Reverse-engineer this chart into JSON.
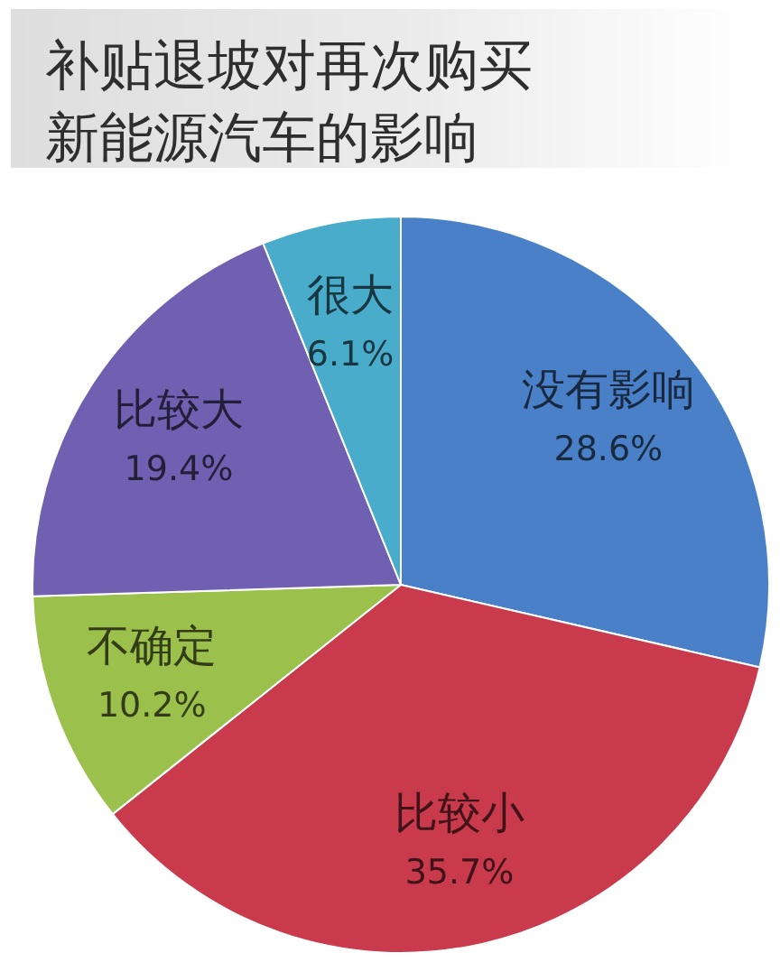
{
  "chart_data": {
    "type": "pie",
    "title": "补贴退坡对再次购买新能源汽车的影响",
    "categories": [
      "没有影响",
      "比较小",
      "不确定",
      "比较大",
      "很大"
    ],
    "values": [
      28.6,
      35.7,
      10.2,
      19.4,
      6.1
    ],
    "colors": [
      "#4a80c8",
      "#c83a4c",
      "#9cc04c",
      "#7060b2",
      "#4aaccb"
    ],
    "value_labels": [
      "28.6%",
      "35.7%",
      "10.2%",
      "19.4%",
      "6.1%"
    ]
  }
}
